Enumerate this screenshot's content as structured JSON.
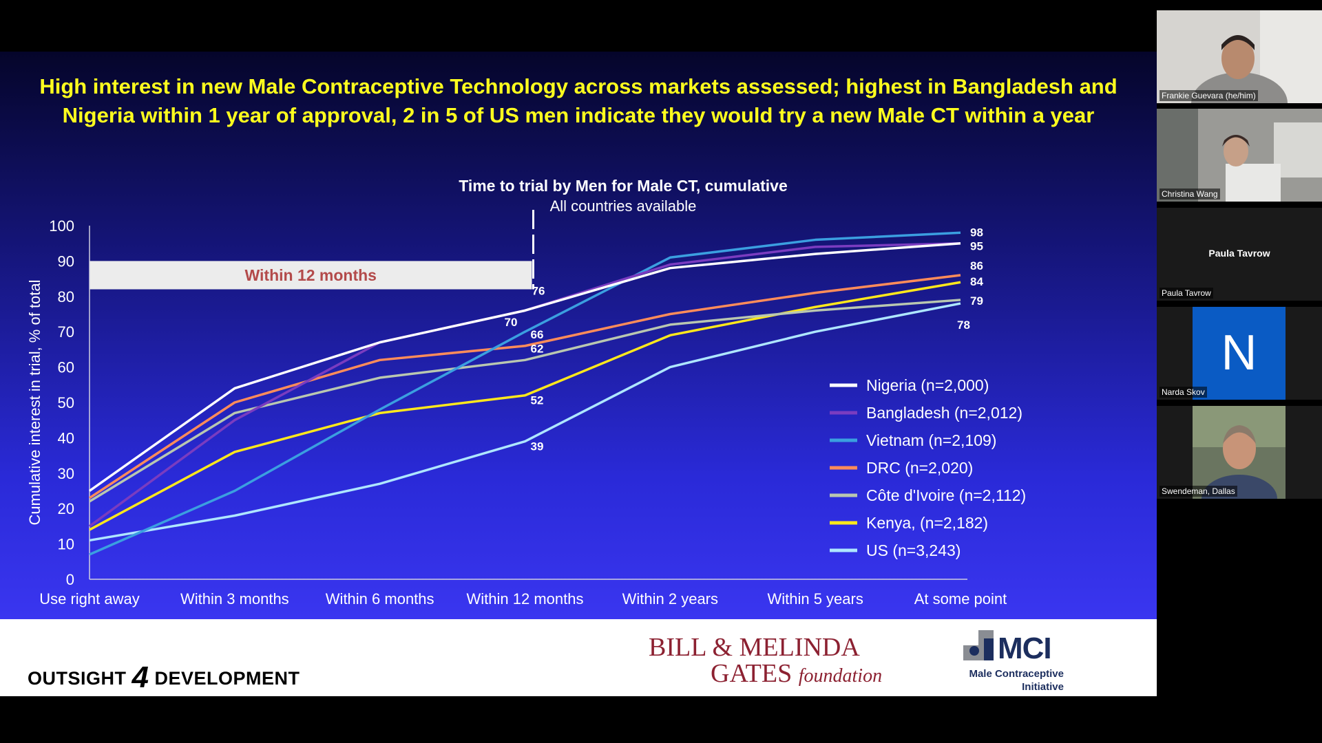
{
  "slide": {
    "title": "High interest in new Male Contraceptive Technology across markets assessed; highest in Bangladesh and Nigeria within 1 year of approval, 2 in 5 of US men indicate they would try a new Male CT within a year",
    "footer_left_a": "OUTSIGHT",
    "footer_left_num": "4",
    "footer_left_b": "DEVELOPMENT",
    "gates_line1": "BILL & MELINDA",
    "gates_line2": "GATES",
    "gates_foundation": "foundation",
    "mci_logo_text": "MCI",
    "mci_sub1": "Male Contraceptive",
    "mci_sub2": "Initiative"
  },
  "chart_data": {
    "type": "line",
    "title": "Time to trial by Men for Male CT, cumulative",
    "subtitle": "All countries available",
    "xlabel": "",
    "ylabel": "Cumulative interest in trial, % of total",
    "ylim": [
      0,
      100
    ],
    "yticks": [
      0,
      10,
      20,
      30,
      40,
      50,
      60,
      70,
      80,
      90,
      100
    ],
    "categories": [
      "Use right away",
      "Within 3 months",
      "Within 6 months",
      "Within 12 months",
      "Within 2 years",
      "Within 5 years",
      "At some point"
    ],
    "highlight_label": "Within 12 months",
    "series": [
      {
        "name": "Nigeria (n=2,000)",
        "color": "#ffffff",
        "values": [
          25,
          54,
          67,
          76,
          88,
          92,
          95
        ]
      },
      {
        "name": "Bangladesh (n=2,012)",
        "color": "#7a3cc0",
        "values": [
          15,
          45,
          67,
          76,
          89,
          94,
          95
        ]
      },
      {
        "name": "Vietnam (n=2,109)",
        "color": "#3b9fe0",
        "values": [
          7,
          25,
          48,
          70,
          91,
          96,
          98
        ]
      },
      {
        "name": "DRC (n=2,020)",
        "color": "#ff8c5a",
        "values": [
          23,
          50,
          62,
          66,
          75,
          81,
          86
        ]
      },
      {
        "name": "Côte d'Ivoire (n=2,112)",
        "color": "#b9c7b0",
        "values": [
          22,
          47,
          57,
          62,
          72,
          76,
          79
        ]
      },
      {
        "name": "Kenya, (n=2,182)",
        "color": "#ffe81c",
        "values": [
          14,
          36,
          47,
          52,
          69,
          77,
          84
        ]
      },
      {
        "name": "US (n=3,243)",
        "color": "#aee6ff",
        "values": [
          11,
          18,
          27,
          39,
          60,
          70,
          78
        ]
      }
    ],
    "data_labels": [
      {
        "series": 1,
        "index": 3,
        "text": "76"
      },
      {
        "series": 2,
        "index": 3,
        "text": "70"
      },
      {
        "series": 3,
        "index": 3,
        "text": "66"
      },
      {
        "series": 4,
        "index": 3,
        "text": "62"
      },
      {
        "series": 5,
        "index": 3,
        "text": "52"
      },
      {
        "series": 6,
        "index": 3,
        "text": "39"
      },
      {
        "series": 2,
        "index": 6,
        "text": "98"
      },
      {
        "series": 0,
        "index": 6,
        "text": "95"
      },
      {
        "series": 3,
        "index": 6,
        "text": "86"
      },
      {
        "series": 5,
        "index": 6,
        "text": "84"
      },
      {
        "series": 4,
        "index": 6,
        "text": "79"
      },
      {
        "series": 6,
        "index": 6,
        "text": "78"
      }
    ],
    "legend": "right"
  },
  "participants": [
    {
      "name": "Frankie Guevara (he/him)"
    },
    {
      "name": "Christina Wang"
    },
    {
      "name": "Paula Tavrow",
      "center": "Paula Tavrow"
    },
    {
      "name": "Narda Skov",
      "initial": "N"
    },
    {
      "name": "Swendeman, Dallas"
    }
  ]
}
